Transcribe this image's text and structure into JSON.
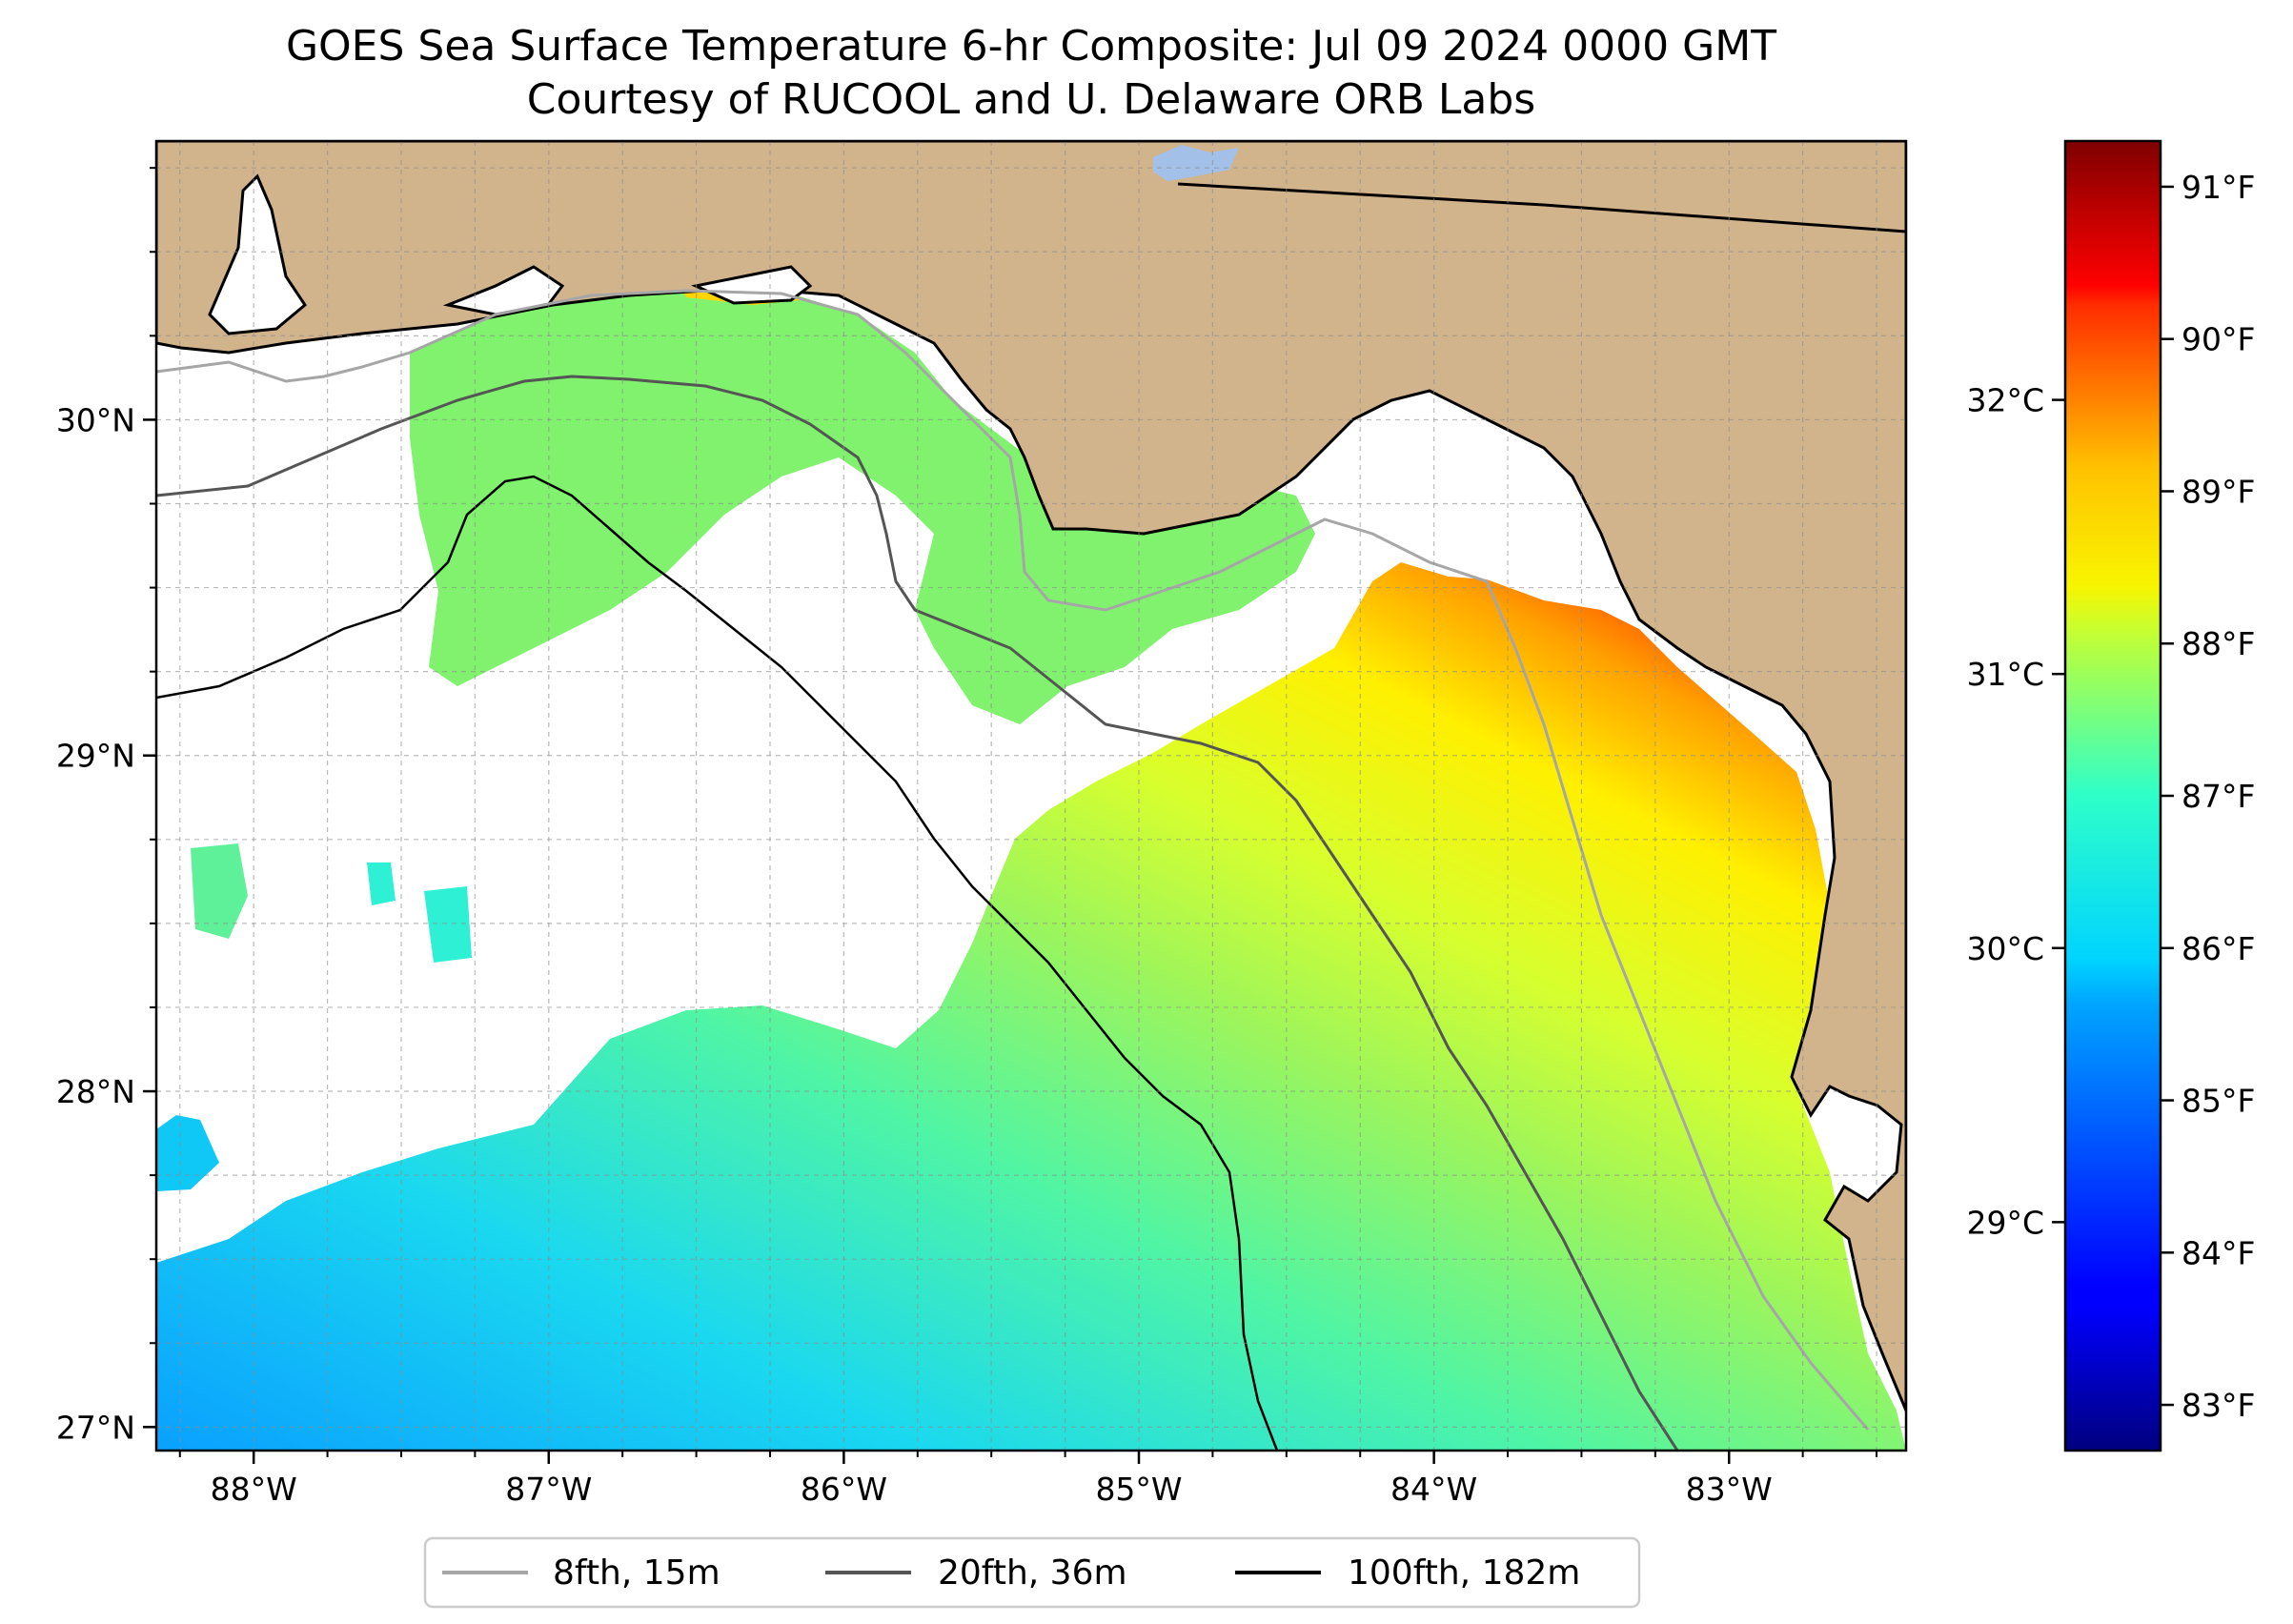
{
  "chart_data": {
    "type": "heatmap",
    "title": "GOES Sea Surface Temperature 6-hr Composite: Jul 09 2024 0000 GMT",
    "subtitle": "Courtesy of RUCOOL and U. Delaware ORB Labs",
    "xlim": [
      -88.33,
      -82.4
    ],
    "ylim": [
      26.93,
      30.83
    ],
    "x_ticks": [
      {
        "value": -88,
        "label": "88°W"
      },
      {
        "value": -87,
        "label": "87°W"
      },
      {
        "value": -86,
        "label": "86°W"
      },
      {
        "value": -85,
        "label": "85°W"
      },
      {
        "value": -84,
        "label": "84°W"
      },
      {
        "value": -83,
        "label": "83°W"
      }
    ],
    "y_ticks": [
      {
        "value": 27,
        "label": "27°N"
      },
      {
        "value": 28,
        "label": "28°N"
      },
      {
        "value": 29,
        "label": "29°N"
      },
      {
        "value": 30,
        "label": "30°N"
      }
    ],
    "grid": true,
    "colorbar": {
      "units_left": "°C",
      "units_right": "°F",
      "range_f": [
        82.7,
        91.3
      ],
      "colormap": "jet",
      "ticks_f": [
        {
          "value": 83,
          "label": "83°F"
        },
        {
          "value": 84,
          "label": "84°F"
        },
        {
          "value": 85,
          "label": "85°F"
        },
        {
          "value": 86,
          "label": "86°F"
        },
        {
          "value": 87,
          "label": "87°F"
        },
        {
          "value": 88,
          "label": "88°F"
        },
        {
          "value": 89,
          "label": "89°F"
        },
        {
          "value": 90,
          "label": "90°F"
        },
        {
          "value": 91,
          "label": "91°F"
        }
      ],
      "ticks_c": [
        {
          "value": 29,
          "label": "29°C"
        },
        {
          "value": 30,
          "label": "30°C"
        },
        {
          "value": 31,
          "label": "31°C"
        },
        {
          "value": 32,
          "label": "32°C"
        }
      ]
    },
    "legend": {
      "placement": "bottom-center",
      "entries": [
        {
          "label": "8fth, 15m",
          "color": "#a6a6a6"
        },
        {
          "label": "20fth, 36m",
          "color": "#555555"
        },
        {
          "label": "100fth, 182m",
          "color": "#000000"
        }
      ]
    },
    "colors": {
      "land": "#d2b48c",
      "no_data": "#ffffff",
      "lake": "#a3c0e8"
    }
  }
}
